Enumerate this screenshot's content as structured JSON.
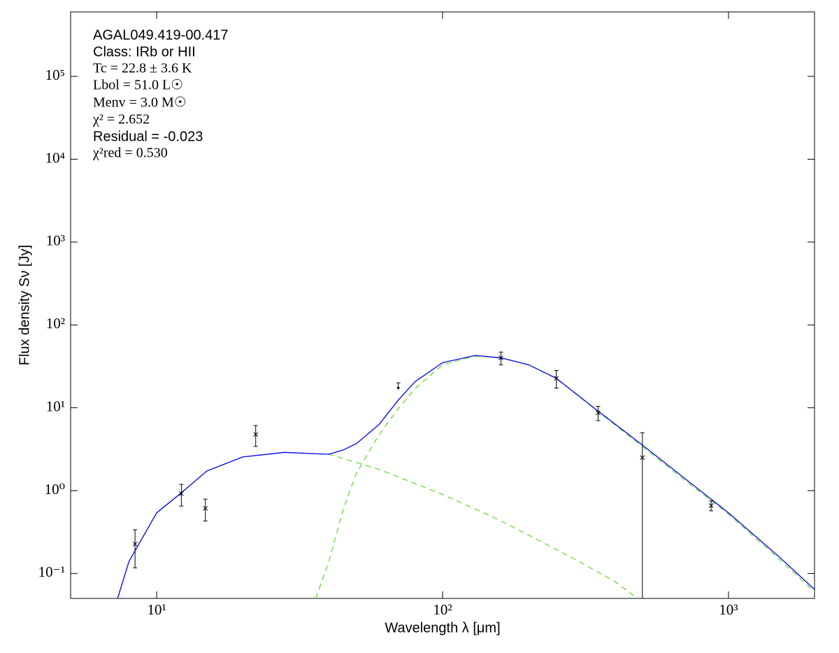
{
  "chart_data": {
    "type": "line",
    "x_scale": "log",
    "y_scale": "log",
    "xlabel": "Wavelength λ [μm]",
    "ylabel": "Flux density Sν [Jy]",
    "xlim": [
      5,
      2000
    ],
    "ylim": [
      0.05,
      600000
    ],
    "xticks": [
      {
        "value": 10,
        "label": "10¹"
      },
      {
        "value": 100,
        "label": "10²"
      },
      {
        "value": 1000,
        "label": "10³"
      }
    ],
    "yticks": [
      {
        "value": 0.1,
        "label": "10⁻¹"
      },
      {
        "value": 1,
        "label": "10⁰"
      },
      {
        "value": 10,
        "label": "10¹"
      },
      {
        "value": 100,
        "label": "10²"
      },
      {
        "value": 1000,
        "label": "10³"
      },
      {
        "value": 10000,
        "label": "10⁴"
      },
      {
        "value": 100000,
        "label": "10⁵"
      }
    ],
    "annotations": [
      "AGAL049.419-00.417",
      "Class: IRb or HII",
      "Tc = 22.8 ± 3.6 K",
      "Lbol = 51.0 L☉",
      "Menv = 3.0 M☉",
      "χ² = 2.652",
      "Residual = -0.023",
      "χ²red = 0.530"
    ],
    "series": [
      {
        "color": "#66dd33",
        "style": "dashed",
        "x": [
          7.3,
          8,
          10,
          12,
          15,
          20,
          28,
          35,
          40,
          50,
          60,
          80,
          100,
          150,
          200,
          300,
          400,
          480
        ],
        "values": [
          0.05,
          0.14,
          0.54,
          0.9,
          1.73,
          2.55,
          2.9,
          2.8,
          2.75,
          2.18,
          1.8,
          1.22,
          0.9,
          0.48,
          0.29,
          0.14,
          0.08,
          0.05
        ]
      },
      {
        "color": "#66dd33",
        "style": "dashed",
        "x": [
          36,
          40,
          45,
          50,
          60,
          70,
          80,
          100,
          130,
          160,
          200,
          250,
          350,
          500,
          700,
          1000,
          1500,
          2000
        ],
        "values": [
          0.05,
          0.14,
          0.61,
          1.63,
          4.76,
          9.8,
          17,
          33,
          42,
          40,
          33,
          22.5,
          9,
          3.4,
          1.35,
          0.52,
          0.15,
          0.06
        ]
      },
      {
        "color": "#0000ff",
        "style": "solid",
        "x": [
          7.3,
          8,
          10,
          12,
          15,
          20,
          28,
          35,
          40,
          45,
          50,
          60,
          70,
          80,
          100,
          130,
          160,
          200,
          250,
          350,
          500,
          700,
          1000,
          1500,
          2000
        ],
        "values": [
          0.05,
          0.14,
          0.54,
          0.9,
          1.73,
          2.55,
          2.9,
          2.8,
          2.75,
          3.1,
          3.7,
          6.3,
          12.4,
          20.6,
          35,
          42.8,
          40,
          33,
          22.7,
          9.1,
          3.55,
          1.42,
          0.54,
          0.16,
          0.064
        ]
      }
    ],
    "points": {
      "color": "#000000",
      "x": [
        8.4,
        12.2,
        14.8,
        22.2,
        160,
        250,
        350,
        500,
        870
      ],
      "values": [
        0.227,
        0.92,
        0.61,
        4.76,
        40,
        22.7,
        8.7,
        2.5,
        0.66
      ],
      "errors": [
        0.11,
        0.27,
        0.18,
        1.35,
        7,
        5.4,
        1.7,
        2.5,
        0.09
      ]
    },
    "upper_limits": {
      "color": "#000000",
      "x": [
        70
      ],
      "values": [
        20
      ]
    }
  }
}
